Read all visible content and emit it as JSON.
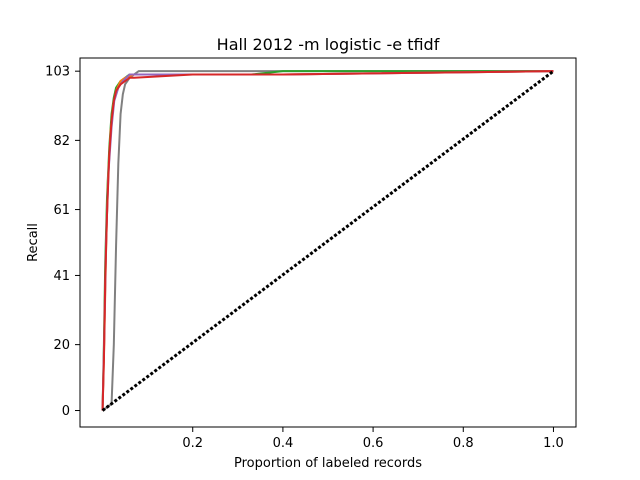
{
  "chart_data": {
    "type": "line",
    "title": "Hall 2012 -m logistic -e tfidf",
    "xlabel": "Proportion of labeled records",
    "ylabel": "Recall",
    "xlim": [
      -0.05,
      1.05
    ],
    "ylim": [
      -5,
      107
    ],
    "x_ticks": [
      {
        "value": 0.2,
        "label": "0.2"
      },
      {
        "value": 0.4,
        "label": "0.4"
      },
      {
        "value": 0.6,
        "label": "0.6"
      },
      {
        "value": 0.8,
        "label": "0.8"
      },
      {
        "value": 1.0,
        "label": "1.0"
      }
    ],
    "y_ticks": [
      {
        "value": 0,
        "label": "0"
      },
      {
        "value": 20,
        "label": "20"
      },
      {
        "value": 41,
        "label": "41"
      },
      {
        "value": 61,
        "label": "61"
      },
      {
        "value": 82,
        "label": "82"
      },
      {
        "value": 103,
        "label": "103"
      }
    ],
    "grid": false,
    "series": [
      {
        "color": "#808080",
        "style": "solid",
        "x": [
          0.0,
          0.02,
          0.025,
          0.03,
          0.035,
          0.04,
          0.045,
          0.05,
          0.06,
          0.08,
          0.32,
          1.0
        ],
        "y": [
          0,
          2,
          20,
          50,
          75,
          90,
          96,
          99,
          101,
          103,
          103,
          103
        ]
      },
      {
        "color": "#2ca02c",
        "style": "solid",
        "x": [
          0.0,
          0.003,
          0.006,
          0.01,
          0.015,
          0.02,
          0.025,
          0.03,
          0.04,
          0.05,
          0.06,
          0.33,
          0.4,
          1.0
        ],
        "y": [
          0,
          20,
          45,
          65,
          80,
          90,
          95,
          98,
          100,
          101,
          102,
          102,
          103,
          103
        ]
      },
      {
        "color": "#ff7f0e",
        "style": "solid",
        "x": [
          0.0,
          0.004,
          0.008,
          0.012,
          0.018,
          0.024,
          0.03,
          0.04,
          0.05,
          0.07,
          0.4,
          1.0
        ],
        "y": [
          0,
          22,
          50,
          70,
          85,
          93,
          97,
          100,
          101,
          102,
          102,
          103
        ]
      },
      {
        "color": "#9467bd",
        "style": "solid",
        "x": [
          0.0,
          0.004,
          0.008,
          0.013,
          0.02,
          0.026,
          0.035,
          0.045,
          0.06,
          0.4,
          1.0
        ],
        "y": [
          0,
          24,
          52,
          72,
          86,
          94,
          98,
          100,
          102,
          102,
          103
        ]
      },
      {
        "color": "#d62728",
        "style": "solid",
        "x": [
          0.0,
          0.003,
          0.006,
          0.01,
          0.015,
          0.02,
          0.025,
          0.03,
          0.04,
          0.05,
          0.06,
          0.07,
          0.2,
          0.4,
          1.0
        ],
        "y": [
          0,
          15,
          40,
          60,
          78,
          88,
          94,
          97,
          99,
          100,
          101,
          101,
          102,
          102,
          103
        ]
      },
      {
        "color": "#000000",
        "style": "dashed",
        "x": [
          0.0,
          1.0
        ],
        "y": [
          0,
          103
        ]
      }
    ]
  }
}
